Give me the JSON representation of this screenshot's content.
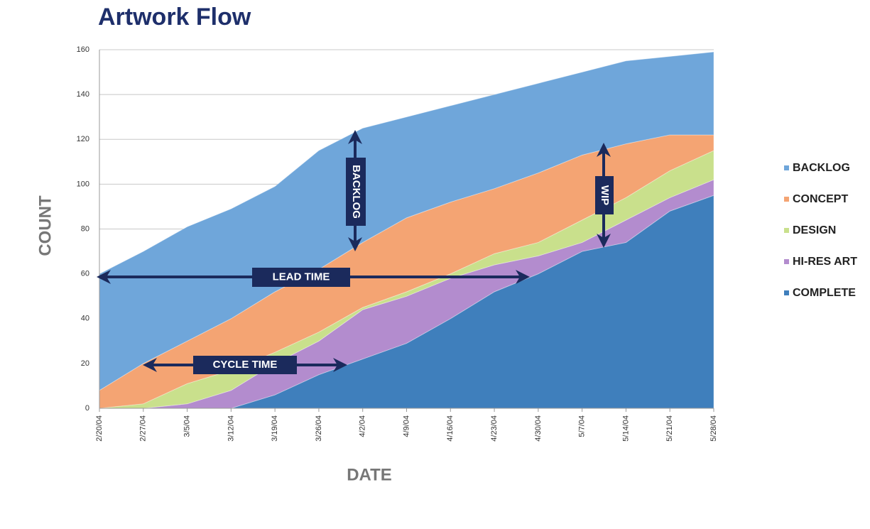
{
  "chart_data": {
    "type": "stacked-area",
    "title": "Artwork Flow",
    "x_label": "DATE",
    "y_label": "COUNT",
    "categories": [
      "2/20/04",
      "2/27/04",
      "3/5/04",
      "3/12/04",
      "3/19/04",
      "3/26/04",
      "4/2/04",
      "4/9/04",
      "4/16/04",
      "4/23/04",
      "4/30/04",
      "5/7/04",
      "5/14/04",
      "5/21/04",
      "5/28/04"
    ],
    "series": [
      {
        "name": "BACKLOG",
        "color": "#6fa6da",
        "values": [
          52,
          50,
          51,
          49,
          47,
          53,
          51,
          45,
          43,
          42,
          40,
          37,
          37,
          35,
          37
        ]
      },
      {
        "name": "CONCEPT",
        "color": "#f4a473",
        "values": [
          8,
          18,
          19,
          23,
          27,
          28,
          29,
          33,
          32,
          29,
          31,
          29,
          24,
          16,
          7
        ]
      },
      {
        "name": "DESIGN",
        "color": "#c9e08c",
        "values": [
          0,
          2,
          9,
          9,
          5,
          4,
          1,
          2,
          2,
          5,
          6,
          10,
          10,
          12,
          13
        ]
      },
      {
        "name": "HI-RES ART",
        "color": "#b38cce",
        "values": [
          0,
          0,
          2,
          8,
          14,
          15,
          22,
          21,
          18,
          12,
          8,
          4,
          10,
          6,
          7
        ]
      },
      {
        "name": "COMPLETE",
        "color": "#3f7fbc",
        "values": [
          0,
          0,
          0,
          0,
          6,
          15,
          22,
          29,
          40,
          52,
          60,
          70,
          74,
          88,
          95
        ]
      }
    ],
    "ylim": [
      0,
      160
    ],
    "yticks": [
      0,
      20,
      40,
      60,
      80,
      100,
      120,
      140,
      160
    ],
    "grid": true,
    "legend": "right",
    "annotations": [
      "BACKLOG",
      "WIP",
      "LEAD TIME",
      "CYCLE TIME"
    ]
  }
}
